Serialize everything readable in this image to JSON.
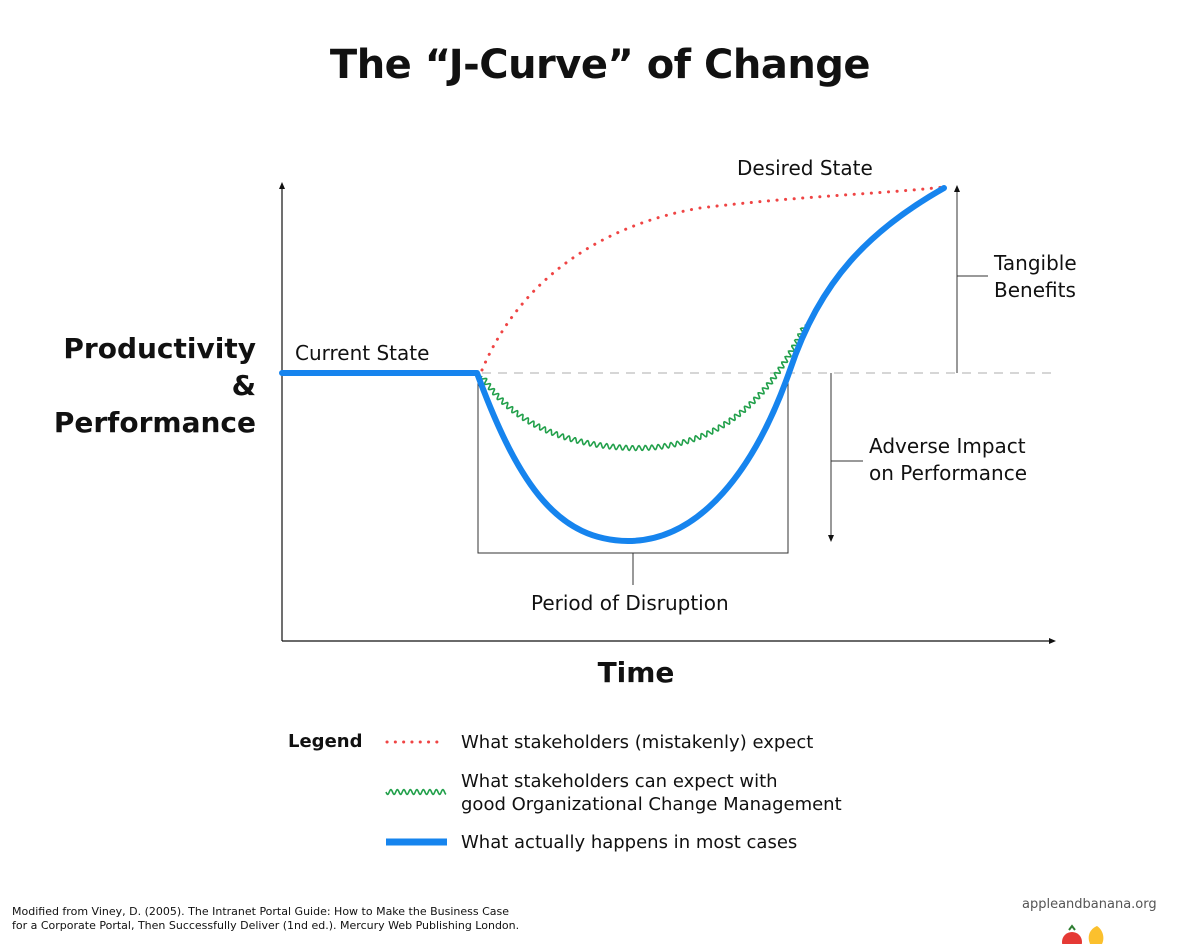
{
  "title": "The “J-Curve” of Change",
  "y_label": [
    "Productivity",
    "&",
    "Performance"
  ],
  "x_label": "Time",
  "annotations": {
    "current_state": "Current State",
    "desired_state": "Desired State",
    "tangible_benefits": [
      "Tangible",
      "Benefits"
    ],
    "adverse_impact": [
      "Adverse Impact",
      "on Performance"
    ],
    "period_of_disruption": "Period of Disruption"
  },
  "legend": {
    "title": "Legend",
    "items": [
      {
        "label": "What stakeholders (mistakenly) expect",
        "style": "dotted",
        "color": "#ef4444"
      },
      {
        "label_lines": [
          "What stakeholders can expect with",
          "good Organizational Change Management"
        ],
        "style": "wavy",
        "color": "#22a04b"
      },
      {
        "label": "What actually happens in most cases",
        "style": "solid",
        "color": "#1684ee"
      }
    ]
  },
  "credit": [
    "Modified from Viney, D. (2005). The Intranet Portal Guide: How to Make the Business Case",
    "for a Corporate Portal, Then Successfully Deliver (1nd ed.). Mercury Web Publishing London."
  ],
  "site": "appleandbanana.org",
  "colors": {
    "expected": "#ef4444",
    "managed": "#22a04b",
    "actual": "#1684ee",
    "axis": "#111111",
    "baseline": "#bdbdbd"
  }
}
